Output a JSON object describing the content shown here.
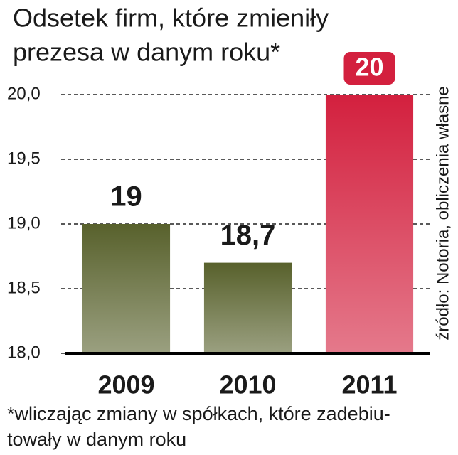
{
  "chart_data": {
    "type": "bar",
    "title": [
      "Odsetek firm, które zmieniły",
      "prezesa w danym roku*"
    ],
    "source": "źródło: Notoria, obliczenia własne",
    "footnote": [
      "*wliczając zmiany w spółkach, które zadebiu-",
      "towały w danym roku"
    ],
    "categories": [
      "2009",
      "2010",
      "2011"
    ],
    "values": [
      19,
      18.7,
      20
    ],
    "value_labels": [
      "19",
      "18,7",
      "20"
    ],
    "colors": [
      "#58612c",
      "#58612c",
      "#d3203e"
    ],
    "highlight": 2,
    "ylim": [
      18,
      20.15
    ],
    "yticks": [
      {
        "value": 18,
        "label": "18,0"
      },
      {
        "value": 18.5,
        "label": "18,5"
      },
      {
        "value": 19,
        "label": "19,0"
      },
      {
        "value": 19.5,
        "label": "19,5"
      },
      {
        "value": 20,
        "label": "20,0"
      }
    ],
    "grid": true
  }
}
